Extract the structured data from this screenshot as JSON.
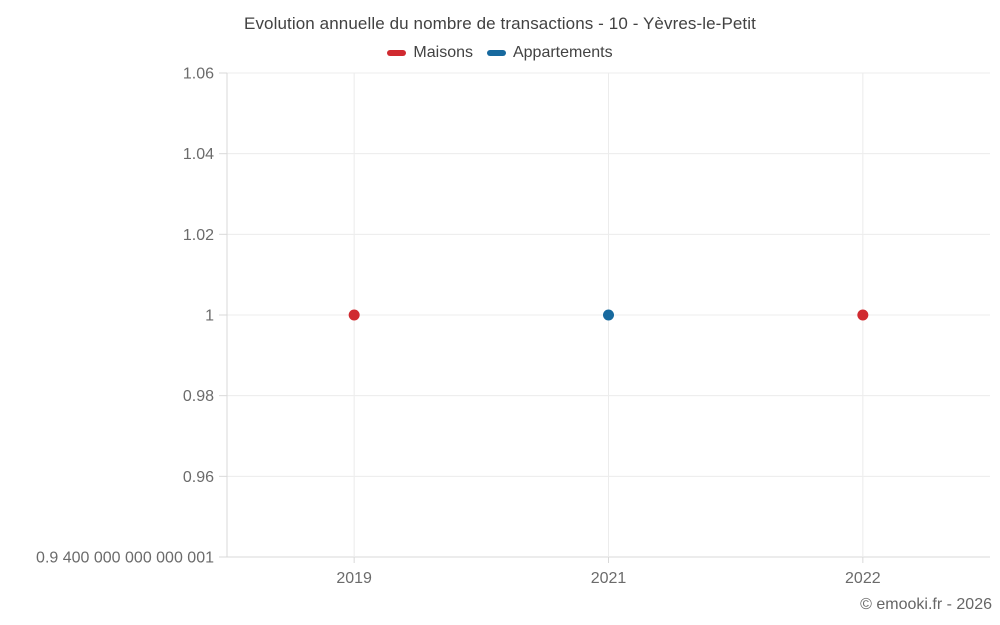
{
  "title": "Evolution annuelle du nombre de transactions - 10 - Yèvres-le-Petit",
  "attribution": "© emooki.fr - 2026",
  "legend": {
    "items": [
      {
        "label": "Maisons",
        "color": "#d02a30"
      },
      {
        "label": "Appartements",
        "color": "#17699e"
      }
    ]
  },
  "colors": {
    "maisons": "#d02a30",
    "appartements": "#17699e",
    "gridline": "#ececec",
    "axis_line": "#d9d9d9",
    "tick_label": "#6b6b6b"
  },
  "chart_data": {
    "type": "scatter",
    "title": "Evolution annuelle du nombre de transactions - 10 - Yèvres-le-Petit",
    "categories": [
      "2019",
      "2021",
      "2022"
    ],
    "series": [
      {
        "name": "Maisons",
        "color": "#d02a30",
        "points": [
          {
            "x": "2019",
            "y": 1
          },
          {
            "x": "2022",
            "y": 1
          }
        ]
      },
      {
        "name": "Appartements",
        "color": "#17699e",
        "points": [
          {
            "x": "2021",
            "y": 1
          }
        ]
      }
    ],
    "xlabel": "",
    "ylabel": "",
    "ylim": [
      0.9400000000000001,
      1.06
    ],
    "y_ticks": [
      {
        "value": 1.06,
        "label": "1.06"
      },
      {
        "value": 1.04,
        "label": "1.04"
      },
      {
        "value": 1.02,
        "label": "1.02"
      },
      {
        "value": 1.0,
        "label": "1"
      },
      {
        "value": 0.98,
        "label": "0.98"
      },
      {
        "value": 0.96,
        "label": "0.96"
      },
      {
        "value": 0.9400000000000001,
        "label": "0.9 400 000 000 000 001"
      }
    ],
    "x_ticks": [
      "2019",
      "2021",
      "2022"
    ],
    "grid": true,
    "legend_position": "top",
    "point_radius": 5.5
  }
}
